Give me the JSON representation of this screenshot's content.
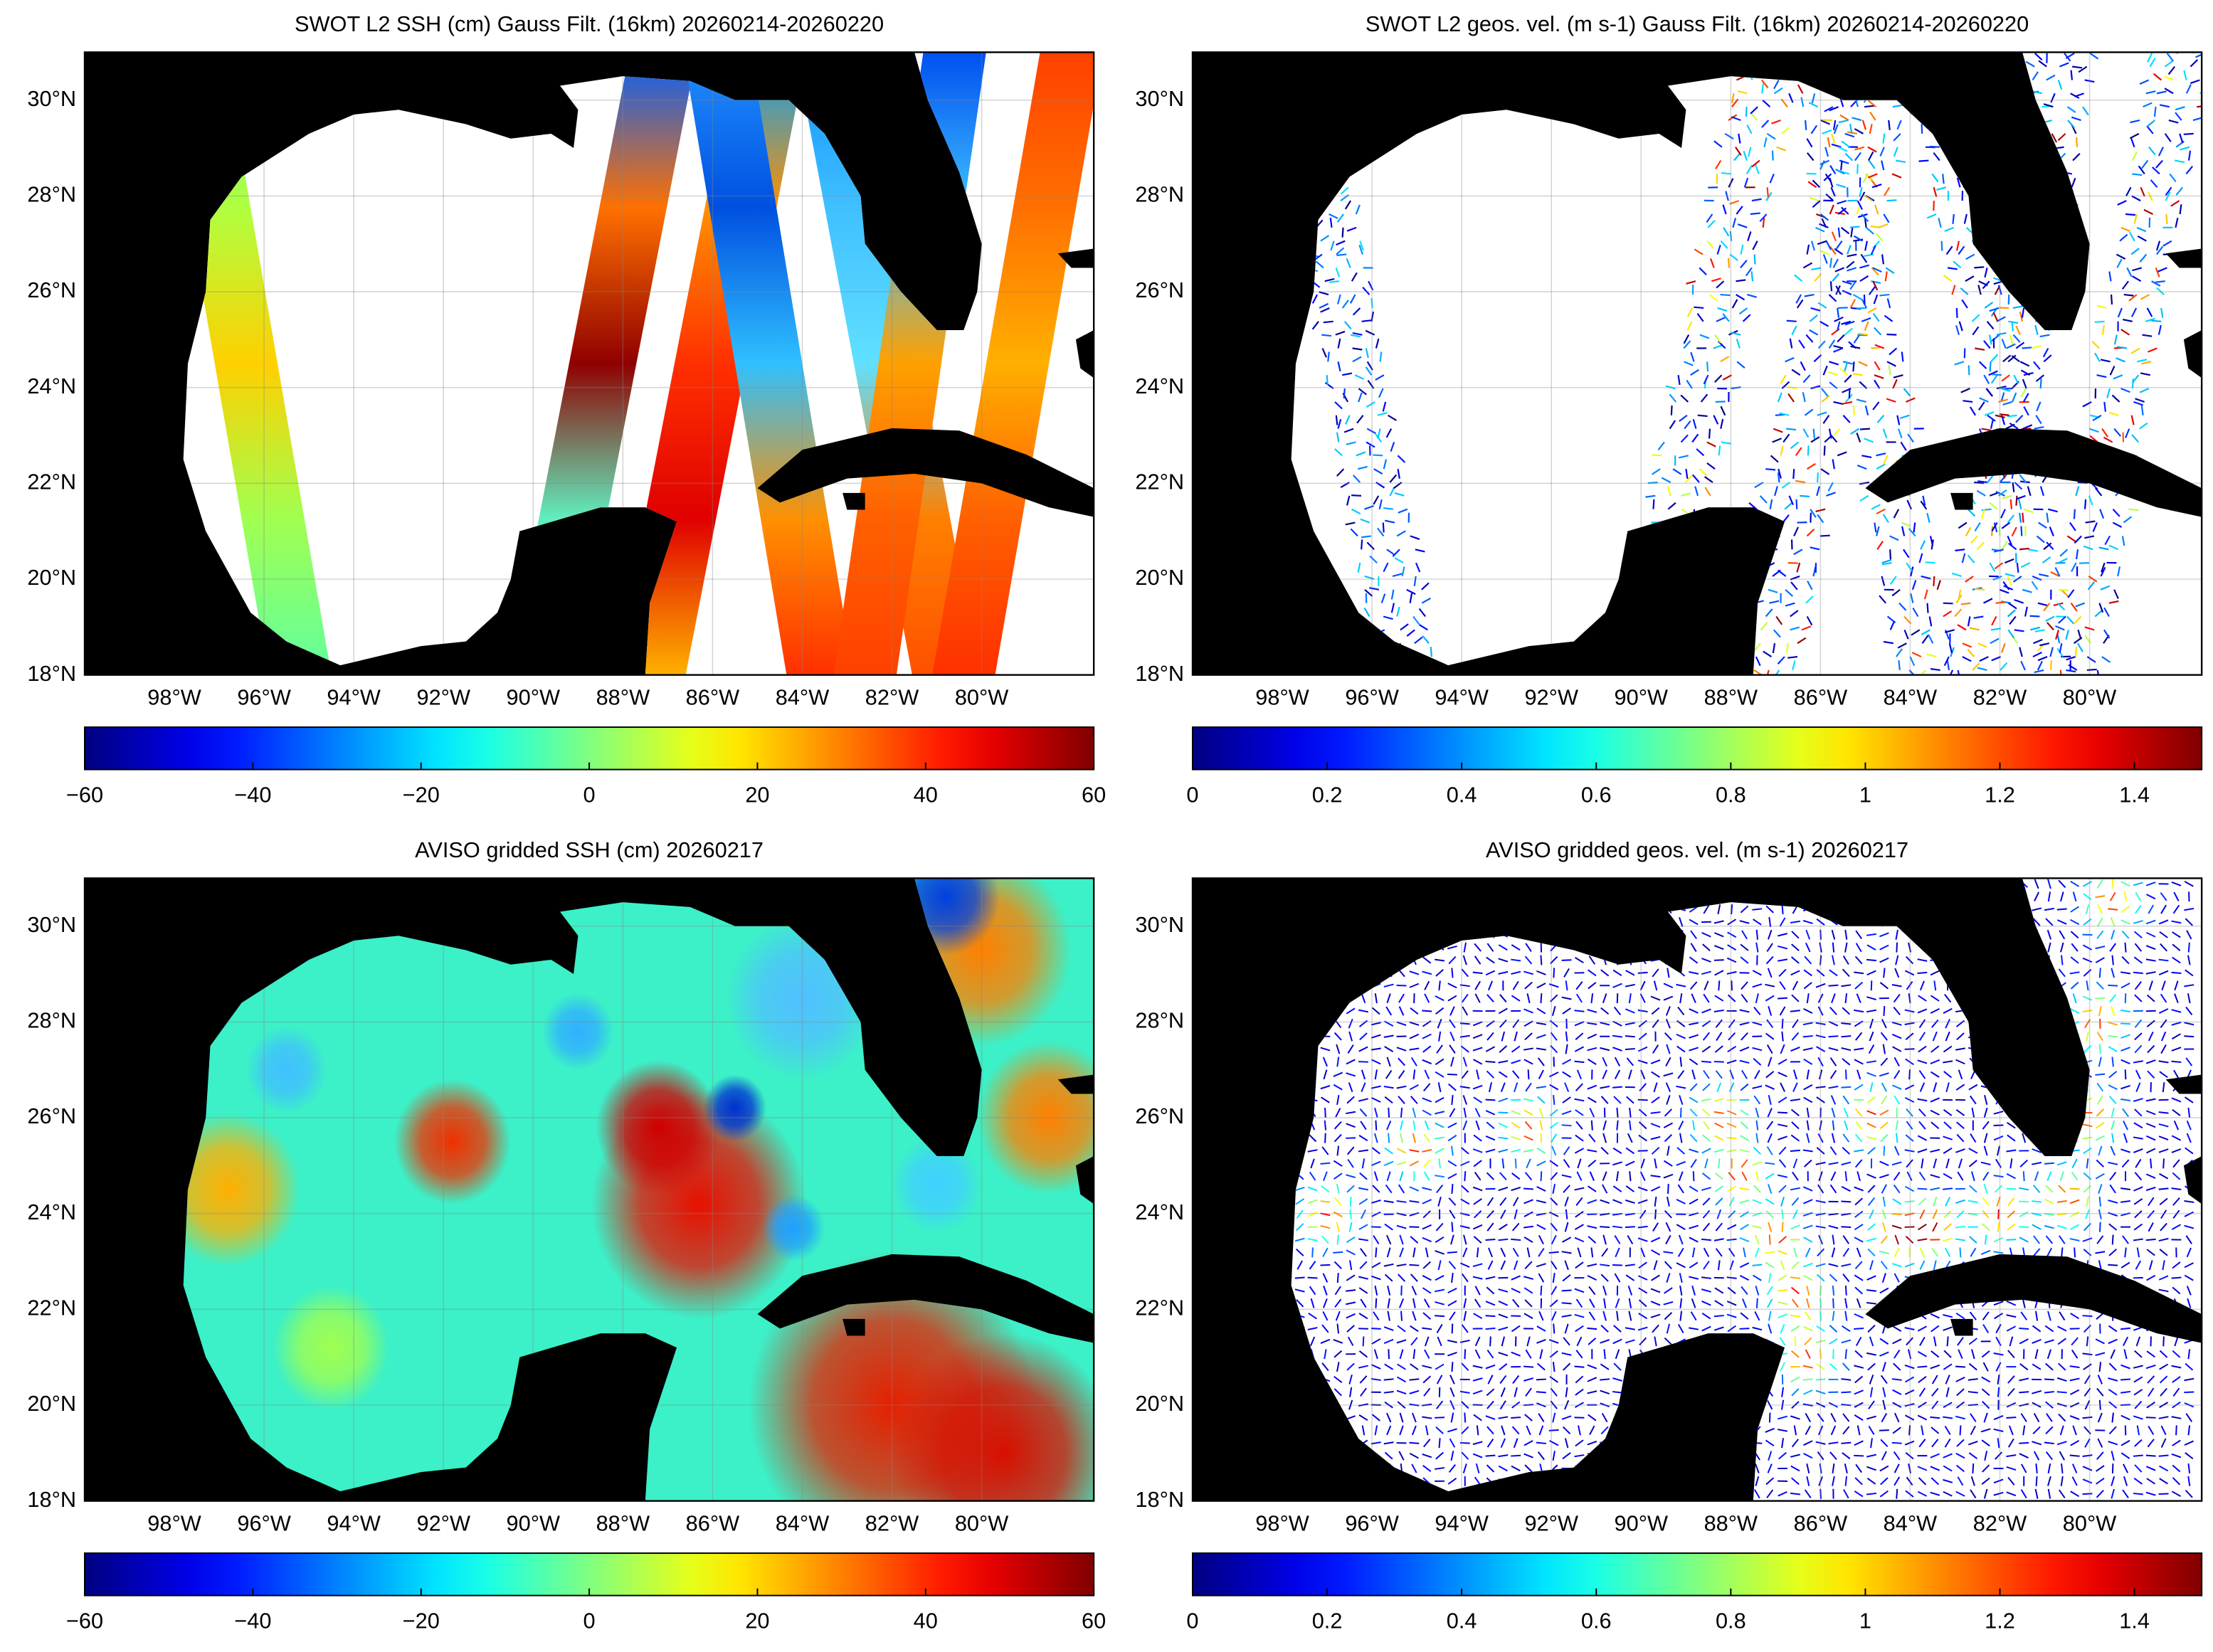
{
  "panels": [
    {
      "title": "SWOT L2 SSH (cm) Gauss Filt. (16km) 20260214-20260220",
      "lonlim": [
        -100,
        -77.5
      ],
      "latlim": [
        18,
        31
      ],
      "lon_ticks": [
        {
          "value": -98,
          "label": "98°W"
        },
        {
          "value": -96,
          "label": "96°W"
        },
        {
          "value": -94,
          "label": "94°W"
        },
        {
          "value": -92,
          "label": "92°W"
        },
        {
          "value": -90,
          "label": "90°W"
        },
        {
          "value": -88,
          "label": "88°W"
        },
        {
          "value": -86,
          "label": "86°W"
        },
        {
          "value": -84,
          "label": "84°W"
        },
        {
          "value": -82,
          "label": "82°W"
        },
        {
          "value": -80,
          "label": "80°W"
        }
      ],
      "lat_ticks": [
        {
          "value": 18,
          "label": "18°N"
        },
        {
          "value": 20,
          "label": "20°N"
        },
        {
          "value": 22,
          "label": "22°N"
        },
        {
          "value": 24,
          "label": "24°N"
        },
        {
          "value": 26,
          "label": "26°N"
        },
        {
          "value": 28,
          "label": "28°N"
        },
        {
          "value": 30,
          "label": "30°N"
        }
      ],
      "colorbar": {
        "lim": [
          -60,
          60
        ],
        "ticks": [
          {
            "value": -60,
            "label": "−60"
          },
          {
            "value": -40,
            "label": "−40"
          },
          {
            "value": -20,
            "label": "−20"
          },
          0,
          20,
          40,
          60
        ]
      }
    },
    {
      "title": "SWOT L2 geos. vel. (m s-1) Gauss Filt. (16km) 20260214-20260220",
      "lonlim": [
        -100,
        -77.5
      ],
      "latlim": [
        18,
        31
      ],
      "lon_ticks": [
        {
          "value": -98,
          "label": "98°W"
        },
        {
          "value": -96,
          "label": "96°W"
        },
        {
          "value": -94,
          "label": "94°W"
        },
        {
          "value": -92,
          "label": "92°W"
        },
        {
          "value": -90,
          "label": "90°W"
        },
        {
          "value": -88,
          "label": "88°W"
        },
        {
          "value": -86,
          "label": "86°W"
        },
        {
          "value": -84,
          "label": "84°W"
        },
        {
          "value": -82,
          "label": "82°W"
        },
        {
          "value": -80,
          "label": "80°W"
        }
      ],
      "lat_ticks": [
        {
          "value": 18,
          "label": "18°N"
        },
        {
          "value": 20,
          "label": "20°N"
        },
        {
          "value": 22,
          "label": "22°N"
        },
        {
          "value": 24,
          "label": "24°N"
        },
        {
          "value": 26,
          "label": "26°N"
        },
        {
          "value": 28,
          "label": "28°N"
        },
        {
          "value": 30,
          "label": "30°N"
        }
      ],
      "colorbar": {
        "lim": [
          0,
          1.5
        ],
        "ticks": [
          0,
          0.2,
          0.4,
          0.6,
          0.8,
          1,
          1.2,
          1.4
        ]
      }
    },
    {
      "title": "AVISO gridded SSH (cm) 20260217",
      "lonlim": [
        -100,
        -77.5
      ],
      "latlim": [
        18,
        31
      ],
      "lon_ticks": [
        {
          "value": -98,
          "label": "98°W"
        },
        {
          "value": -96,
          "label": "96°W"
        },
        {
          "value": -94,
          "label": "94°W"
        },
        {
          "value": -92,
          "label": "92°W"
        },
        {
          "value": -90,
          "label": "90°W"
        },
        {
          "value": -88,
          "label": "88°W"
        },
        {
          "value": -86,
          "label": "86°W"
        },
        {
          "value": -84,
          "label": "84°W"
        },
        {
          "value": -82,
          "label": "82°W"
        },
        {
          "value": -80,
          "label": "80°W"
        }
      ],
      "lat_ticks": [
        {
          "value": 18,
          "label": "18°N"
        },
        {
          "value": 20,
          "label": "20°N"
        },
        {
          "value": 22,
          "label": "22°N"
        },
        {
          "value": 24,
          "label": "24°N"
        },
        {
          "value": 26,
          "label": "26°N"
        },
        {
          "value": 28,
          "label": "28°N"
        },
        {
          "value": 30,
          "label": "30°N"
        }
      ],
      "colorbar": {
        "lim": [
          -60,
          60
        ],
        "ticks": [
          {
            "value": -60,
            "label": "−60"
          },
          {
            "value": -40,
            "label": "−40"
          },
          {
            "value": -20,
            "label": "−20"
          },
          0,
          20,
          40,
          60
        ]
      }
    },
    {
      "title": "AVISO gridded geos. vel. (m s-1)  20260217",
      "lonlim": [
        -100,
        -77.5
      ],
      "latlim": [
        18,
        31
      ],
      "lon_ticks": [
        {
          "value": -98,
          "label": "98°W"
        },
        {
          "value": -96,
          "label": "96°W"
        },
        {
          "value": -94,
          "label": "94°W"
        },
        {
          "value": -92,
          "label": "92°W"
        },
        {
          "value": -90,
          "label": "90°W"
        },
        {
          "value": -88,
          "label": "88°W"
        },
        {
          "value": -86,
          "label": "86°W"
        },
        {
          "value": -84,
          "label": "84°W"
        },
        {
          "value": -82,
          "label": "82°W"
        },
        {
          "value": -80,
          "label": "80°W"
        }
      ],
      "lat_ticks": [
        {
          "value": 18,
          "label": "18°N"
        },
        {
          "value": 20,
          "label": "20°N"
        },
        {
          "value": 22,
          "label": "22°N"
        },
        {
          "value": 24,
          "label": "24°N"
        },
        {
          "value": 26,
          "label": "26°N"
        },
        {
          "value": 28,
          "label": "28°N"
        },
        {
          "value": 30,
          "label": "30°N"
        }
      ],
      "colorbar": {
        "lim": [
          0,
          1.5
        ],
        "ticks": [
          0,
          0.2,
          0.4,
          0.6,
          0.8,
          1,
          1.2,
          1.4
        ]
      }
    }
  ]
}
